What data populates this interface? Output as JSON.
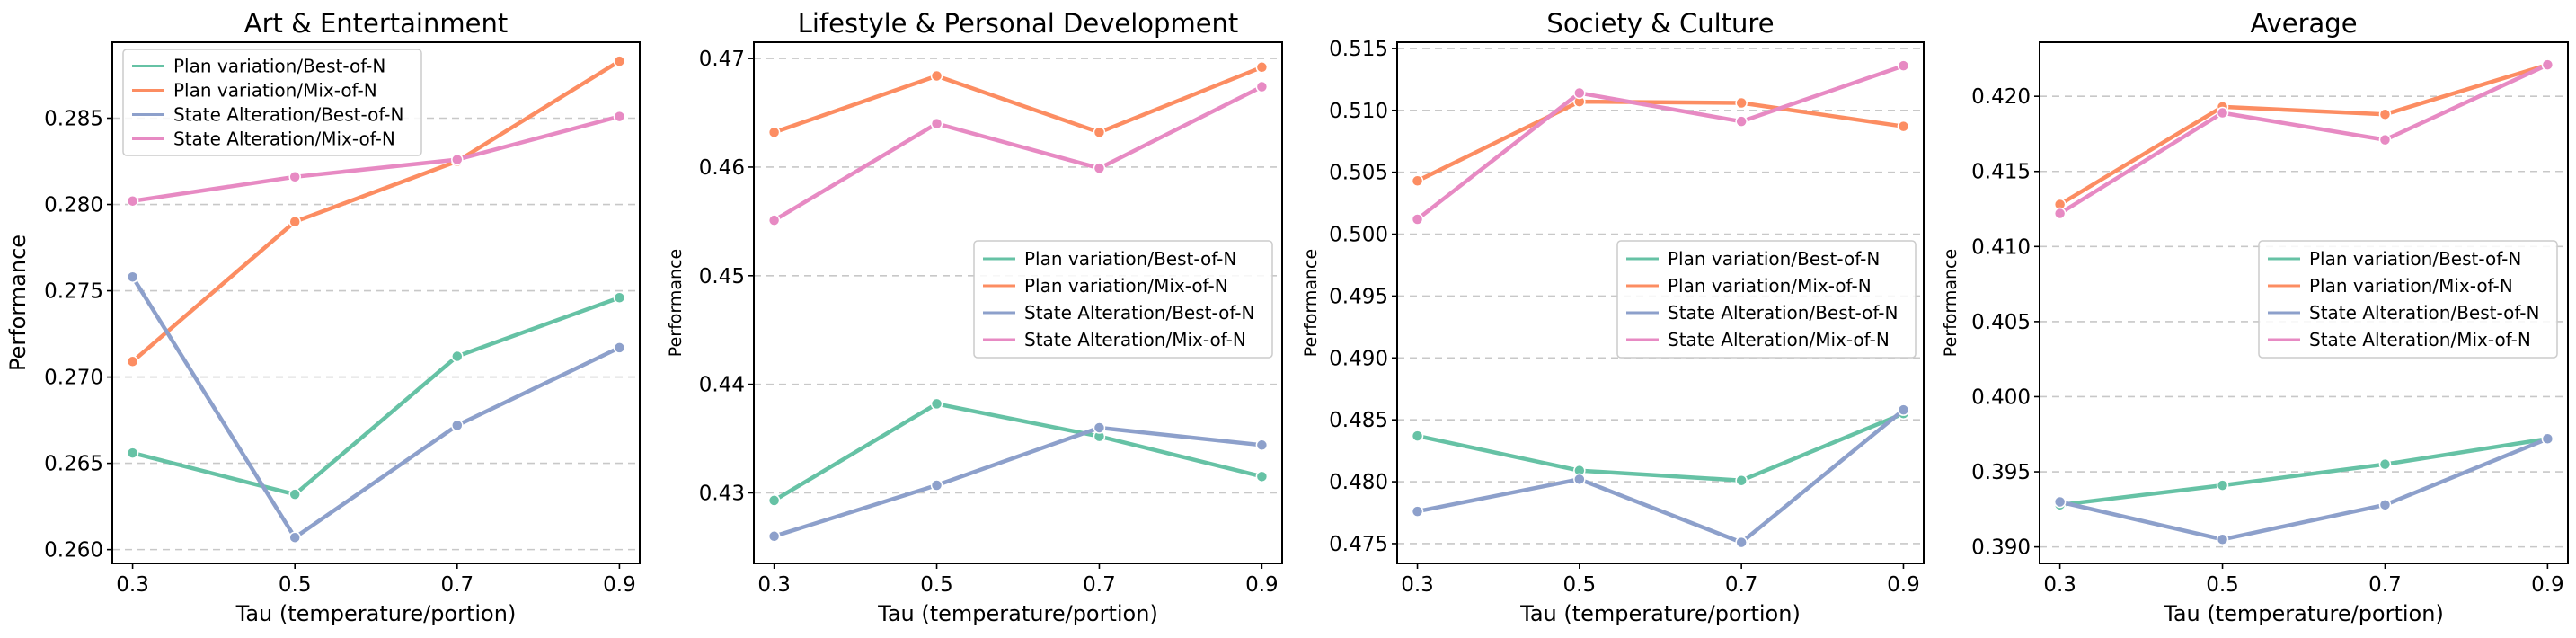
{
  "colors": {
    "Plan variation/Best-of-N": "#66c2a5",
    "Plan variation/Mix-of-N": "#fc8d62",
    "State Alteration/Best-of-N": "#8da0cb",
    "State Alteration/Mix-of-N": "#e78ac3"
  },
  "chart_data": [
    {
      "type": "line",
      "title": "Art & Entertainment",
      "xlabel": "Tau (temperature/portion)",
      "ylabel": "Performance",
      "x": [
        0.3,
        0.5,
        0.7,
        0.9
      ],
      "x_tick_labels": [
        "0.3",
        "0.5",
        "0.7",
        "0.9"
      ],
      "ylim": [
        0.2592,
        0.2894
      ],
      "yticks": [
        0.26,
        0.265,
        0.27,
        0.275,
        0.28,
        0.285
      ],
      "y_tick_labels": [
        "0.260",
        "0.265",
        "0.270",
        "0.275",
        "0.280",
        "0.285"
      ],
      "grid": true,
      "legend_position": "top-left",
      "series": [
        {
          "name": "Plan variation/Best-of-N",
          "values": [
            0.2656,
            0.2632,
            0.2712,
            0.2746
          ]
        },
        {
          "name": "Plan variation/Mix-of-N",
          "values": [
            0.2709,
            0.279,
            0.2825,
            0.2883
          ]
        },
        {
          "name": "State Alteration/Best-of-N",
          "values": [
            0.2758,
            0.2607,
            0.2672,
            0.2717
          ]
        },
        {
          "name": "State Alteration/Mix-of-N",
          "values": [
            0.2802,
            0.2816,
            0.2826,
            0.2851
          ]
        }
      ]
    },
    {
      "type": "line",
      "title": "Lifestyle & Personal Development",
      "xlabel": "Tau (temperature/portion)",
      "ylabel": "Performance",
      "x": [
        0.3,
        0.5,
        0.7,
        0.9
      ],
      "x_tick_labels": [
        "0.3",
        "0.5",
        "0.7",
        "0.9"
      ],
      "ylim": [
        0.4235,
        0.4715
      ],
      "yticks": [
        0.43,
        0.44,
        0.45,
        0.46,
        0.47
      ],
      "y_tick_labels": [
        "0.43",
        "0.44",
        "0.45",
        "0.46",
        "0.47"
      ],
      "grid": true,
      "legend_position": "center-right",
      "series": [
        {
          "name": "Plan variation/Best-of-N",
          "values": [
            0.4293,
            0.4382,
            0.4352,
            0.4315
          ]
        },
        {
          "name": "Plan variation/Mix-of-N",
          "values": [
            0.4632,
            0.4684,
            0.4632,
            0.4692
          ]
        },
        {
          "name": "State Alteration/Best-of-N",
          "values": [
            0.426,
            0.4307,
            0.436,
            0.4344
          ]
        },
        {
          "name": "State Alteration/Mix-of-N",
          "values": [
            0.4551,
            0.464,
            0.4599,
            0.4674
          ]
        }
      ]
    },
    {
      "type": "line",
      "title": "Society & Culture",
      "xlabel": "Tau (temperature/portion)",
      "ylabel": "Performance",
      "x": [
        0.3,
        0.5,
        0.7,
        0.9
      ],
      "x_tick_labels": [
        "0.3",
        "0.5",
        "0.7",
        "0.9"
      ],
      "ylim": [
        0.4734,
        0.5155
      ],
      "yticks": [
        0.475,
        0.48,
        0.485,
        0.49,
        0.495,
        0.5,
        0.505,
        0.51,
        0.515
      ],
      "y_tick_labels": [
        "0.475",
        "0.480",
        "0.485",
        "0.490",
        "0.495",
        "0.500",
        "0.505",
        "0.510",
        "0.515"
      ],
      "grid": true,
      "legend_position": "center-right",
      "series": [
        {
          "name": "Plan variation/Best-of-N",
          "values": [
            0.4837,
            0.4809,
            0.4801,
            0.4855
          ]
        },
        {
          "name": "Plan variation/Mix-of-N",
          "values": [
            0.5043,
            0.5107,
            0.5106,
            0.5087
          ]
        },
        {
          "name": "State Alteration/Best-of-N",
          "values": [
            0.4776,
            0.4802,
            0.4751,
            0.4858
          ]
        },
        {
          "name": "State Alteration/Mix-of-N",
          "values": [
            0.5012,
            0.5114,
            0.5091,
            0.5136
          ]
        }
      ]
    },
    {
      "type": "line",
      "title": "Average",
      "xlabel": "Tau (temperature/portion)",
      "ylabel": "Performance",
      "x": [
        0.3,
        0.5,
        0.7,
        0.9
      ],
      "x_tick_labels": [
        "0.3",
        "0.5",
        "0.7",
        "0.9"
      ],
      "ylim": [
        0.3889,
        0.4236
      ],
      "yticks": [
        0.39,
        0.395,
        0.4,
        0.405,
        0.41,
        0.415,
        0.42
      ],
      "y_tick_labels": [
        "0.390",
        "0.395",
        "0.400",
        "0.405",
        "0.410",
        "0.415",
        "0.420"
      ],
      "grid": true,
      "legend_position": "center-right",
      "series": [
        {
          "name": "Plan variation/Best-of-N",
          "values": [
            0.3928,
            0.3941,
            0.3955,
            0.3972
          ]
        },
        {
          "name": "Plan variation/Mix-of-N",
          "values": [
            0.4128,
            0.4193,
            0.4188,
            0.4221
          ]
        },
        {
          "name": "State Alteration/Best-of-N",
          "values": [
            0.393,
            0.3905,
            0.3928,
            0.3972
          ]
        },
        {
          "name": "State Alteration/Mix-of-N",
          "values": [
            0.4122,
            0.4189,
            0.4171,
            0.4221
          ]
        }
      ]
    }
  ]
}
